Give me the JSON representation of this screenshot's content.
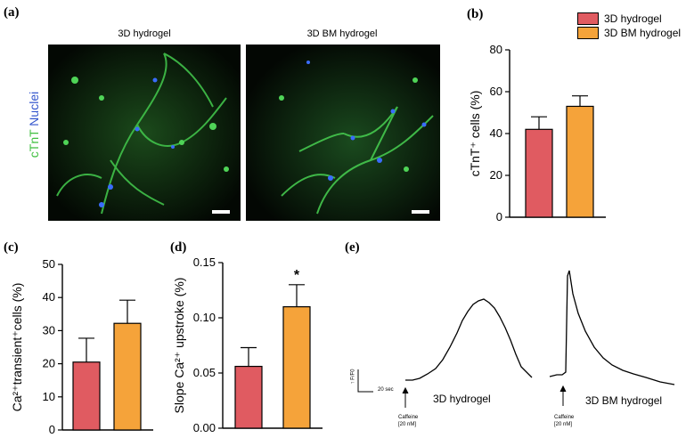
{
  "panels": {
    "a": "(a)",
    "b": "(b)",
    "c": "(c)",
    "d": "(d)",
    "e": "(e)"
  },
  "images": {
    "left_title": "3D hydrogel",
    "right_title": "3D BM hydrogel",
    "stain_ctnt": "cTnT",
    "stain_nuclei": "Nuclei",
    "ctnt_color": "#3fbf3f",
    "nuclei_color": "#3355cc"
  },
  "legend": {
    "items": [
      {
        "label": "3D hydrogel",
        "color": "#e05b61"
      },
      {
        "label": "3D BM hydrogel",
        "color": "#f5a33a"
      }
    ]
  },
  "chart_data": [
    {
      "id": "b",
      "type": "bar",
      "categories": [
        "3D hydrogel",
        "3D BM hydrogel"
      ],
      "values": [
        42,
        53
      ],
      "errors": [
        6,
        5
      ],
      "ylabel": "cTnT⁺ cells (%)",
      "ylim": [
        0,
        80
      ],
      "yticks": [
        "0",
        "20",
        "40",
        "60",
        "80"
      ],
      "colors": [
        "#e05b61",
        "#f5a33a"
      ]
    },
    {
      "id": "c",
      "type": "bar",
      "categories": [
        "3D hydrogel",
        "3D BM hydrogel"
      ],
      "values": [
        20.5,
        32.2
      ],
      "errors": [
        7.2,
        7
      ],
      "ylabel": "Ca²⁺transient⁺cells (%)",
      "ylim": [
        0,
        50
      ],
      "yticks": [
        "0",
        "10",
        "20",
        "30",
        "40",
        "50"
      ],
      "colors": [
        "#e05b61",
        "#f5a33a"
      ]
    },
    {
      "id": "d",
      "type": "bar",
      "categories": [
        "3D hydrogel",
        "3D BM hydrogel"
      ],
      "values": [
        0.056,
        0.11
      ],
      "errors": [
        0.017,
        0.02
      ],
      "ylabel": "Slope Ca²⁺ upstroke (%)",
      "ylim": [
        0,
        0.15
      ],
      "yticks": [
        "0.00",
        "0.05",
        "0.10",
        "0.15"
      ],
      "colors": [
        "#e05b61",
        "#f5a33a"
      ],
      "annotation": "*"
    }
  ],
  "traces": {
    "left_label": "3D hydrogel",
    "right_label": "3D BM hydrogel",
    "scale_y": "↑ F/F0",
    "scale_x": "20 sec",
    "stim_line1": "Caffeine",
    "stim_line2": "[20 nM]"
  }
}
